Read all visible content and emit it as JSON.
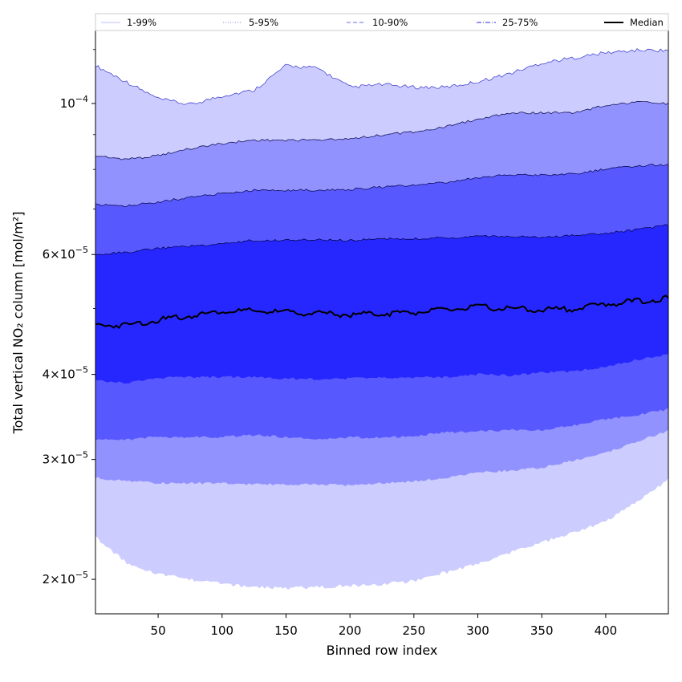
{
  "chart_data": {
    "type": "area",
    "title": "",
    "xlabel": "Binned row index",
    "ylabel": "Total vertical NO₂ column [mol/m²]",
    "xlim": [
      1,
      449
    ],
    "ylim": [
      1.78e-05,
      0.000128
    ],
    "yscale": "log",
    "x_ticks": [
      50,
      100,
      150,
      200,
      250,
      300,
      350,
      400
    ],
    "y_ticks": [
      {
        "value": 2e-05,
        "base": "2",
        "exp": "−5"
      },
      {
        "value": 3e-05,
        "base": "3",
        "exp": "−5"
      },
      {
        "value": 4e-05,
        "base": "4",
        "exp": "−5"
      },
      {
        "value": 6e-05,
        "base": "6",
        "exp": "−5"
      },
      {
        "value": 0.0001,
        "base": "",
        "exp": "−4"
      }
    ],
    "x": [
      1,
      25,
      50,
      75,
      100,
      125,
      150,
      175,
      200,
      225,
      250,
      275,
      300,
      325,
      350,
      375,
      400,
      425,
      449
    ],
    "bands": [
      {
        "name": "1-99%",
        "color": "#ccccff",
        "lower": [
          2.32e-05,
          2.13e-05,
          2.05e-05,
          2.01e-05,
          1.98e-05,
          1.96e-05,
          1.95e-05,
          1.96e-05,
          1.97e-05,
          1.98e-05,
          2e-05,
          2.06e-05,
          2.12e-05,
          2.2e-05,
          2.28e-05,
          2.36e-05,
          2.45e-05,
          2.62e-05,
          2.82e-05
        ],
        "upper": [
          0.000113,
          0.000107,
          0.000101,
          9.9e-05,
          0.000102,
          0.000104,
          0.000113,
          0.000112,
          0.000105,
          0.000106,
          0.000105,
          0.000105,
          0.000107,
          0.00011,
          0.000114,
          0.000116,
          0.000118,
          0.000119,
          0.000119
        ]
      },
      {
        "name": "5-95%",
        "color": "#9292ff",
        "lower": [
          2.83e-05,
          2.8e-05,
          2.78e-05,
          2.78e-05,
          2.78e-05,
          2.77e-05,
          2.77e-05,
          2.77e-05,
          2.76e-05,
          2.78e-05,
          2.8e-05,
          2.83e-05,
          2.88e-05,
          2.9e-05,
          2.93e-05,
          3e-05,
          3.08e-05,
          3.2e-05,
          3.32e-05
        ],
        "upper": [
          8.35e-05,
          8.25e-05,
          8.35e-05,
          8.55e-05,
          8.7e-05,
          8.8e-05,
          8.8e-05,
          8.8e-05,
          8.85e-05,
          8.95e-05,
          9.05e-05,
          9.2e-05,
          9.45e-05,
          9.65e-05,
          9.65e-05,
          9.65e-05,
          9.9e-05,
          0.0001,
          9.95e-05
        ]
      },
      {
        "name": "10-90%",
        "color": "#5858ff",
        "lower": [
          3.22e-05,
          3.22e-05,
          3.25e-05,
          3.25e-05,
          3.25e-05,
          3.27e-05,
          3.25e-05,
          3.22e-05,
          3.25e-05,
          3.24e-05,
          3.26e-05,
          3.3e-05,
          3.31e-05,
          3.33e-05,
          3.33e-05,
          3.38e-05,
          3.45e-05,
          3.5e-05,
          3.57e-05
        ]
      },
      {
        "name": "25-75%",
        "color": "#2626ff",
        "lower": [
          3.93e-05,
          3.9e-05,
          3.97e-05,
          3.98e-05,
          3.98e-05,
          3.98e-05,
          3.96e-05,
          3.95e-05,
          3.96e-05,
          3.97e-05,
          3.98e-05,
          3.98e-05,
          4.02e-05,
          4e-05,
          4.04e-05,
          4.06e-05,
          4.12e-05,
          4.22e-05,
          4.3e-05
        ],
        "upper": [
          5.98e-05,
          6.02e-05,
          6.1e-05,
          6.15e-05,
          6.2e-05,
          6.27e-05,
          6.27e-05,
          6.28e-05,
          6.27e-05,
          6.3e-05,
          6.3e-05,
          6.32e-05,
          6.35e-05,
          6.35e-05,
          6.33e-05,
          6.37e-05,
          6.42e-05,
          6.5e-05,
          6.6e-05
        ]
      }
    ],
    "median": {
      "name": "Median",
      "color": "#000000",
      "values": [
        4.75e-05,
        4.75e-05,
        4.83e-05,
        4.9e-05,
        4.98e-05,
        4.98e-05,
        4.96e-05,
        4.94e-05,
        4.92e-05,
        4.94e-05,
        4.96e-05,
        5e-05,
        5.05e-05,
        5.02e-05,
        5e-05,
        5.02e-05,
        5.1e-05,
        5.15e-05,
        5.2e-05
      ]
    },
    "legend": {
      "position": "top",
      "entries": [
        {
          "label": "1-99%",
          "color": "#ccccff",
          "style": "solid"
        },
        {
          "label": "5-95%",
          "color": "#9999dd",
          "style": "dotted"
        },
        {
          "label": "10-90%",
          "color": "#8888ee",
          "style": "dashed"
        },
        {
          "label": "25-75%",
          "color": "#5555dd",
          "style": "dashdot"
        },
        {
          "label": "Median",
          "color": "#000000",
          "style": "solid"
        }
      ]
    },
    "grid": false
  }
}
